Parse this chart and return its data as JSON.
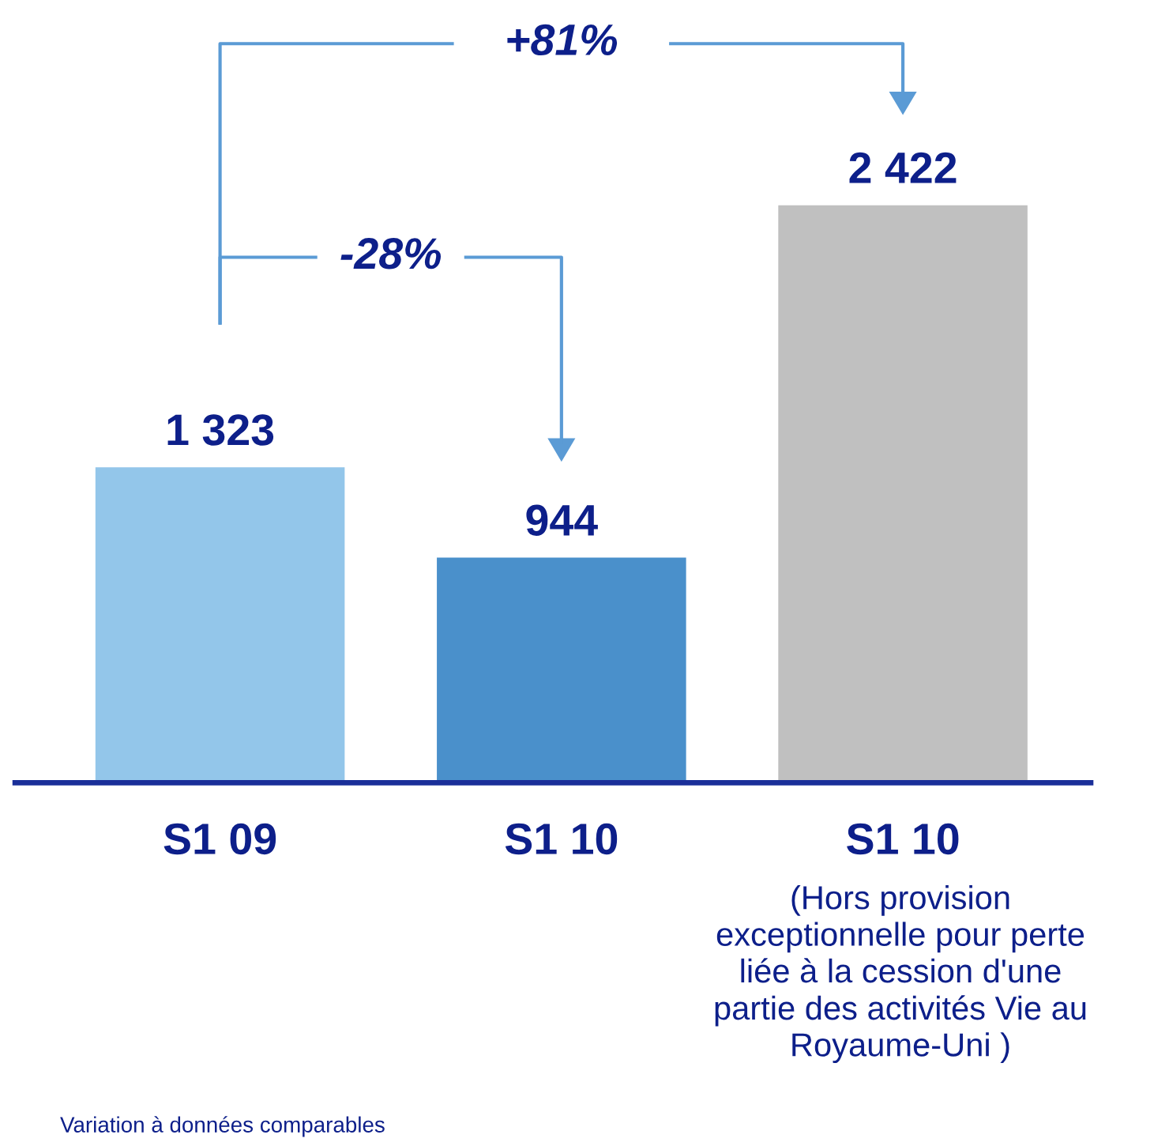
{
  "chart_data": {
    "type": "bar",
    "categories": [
      "S1 09",
      "S1 10",
      "S1 10"
    ],
    "values": [
      1323,
      944,
      2422
    ],
    "value_labels": [
      "1 323",
      "944",
      "2 422"
    ],
    "colors": [
      "#93c6ea",
      "#4a90cb",
      "#c0c0c0"
    ],
    "grid": false,
    "legend": false,
    "annotations": [
      "+81%",
      "-28%",
      "(Hors provision\nexceptionnelle pour perte\nliée à la cession d'une\npartie des activités Vie au\nRoyaume-Uni )",
      "Variation à données comparables"
    ]
  }
}
